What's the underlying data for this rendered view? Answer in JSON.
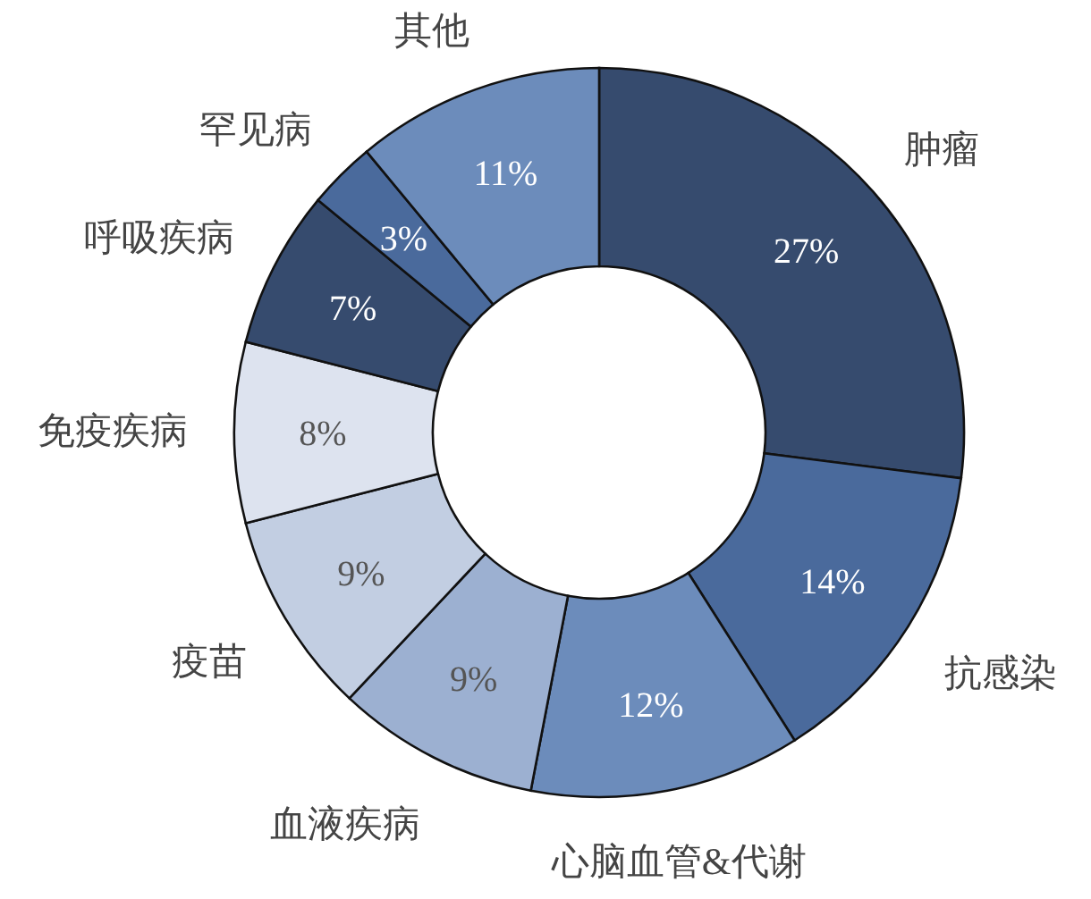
{
  "chart_data": {
    "type": "donut",
    "categories": [
      "肿瘤",
      "抗感染",
      "心脑血管&代谢",
      "血液疾病",
      "疫苗",
      "免疫疾病",
      "呼吸疾病",
      "罕见病",
      "其他"
    ],
    "values": [
      27,
      14,
      12,
      9,
      9,
      8,
      7,
      3,
      11
    ],
    "value_labels": [
      "27%",
      "14%",
      "12%",
      "9%",
      "9%",
      "8%",
      "7%",
      "3%",
      "11%"
    ],
    "colors": [
      "#364b6e",
      "#4a6a9c",
      "#6c8cbb",
      "#9cb0d1",
      "#c2cee2",
      "#dde3ef",
      "#364b6e",
      "#4a6a9c",
      "#6c8cbb"
    ]
  }
}
